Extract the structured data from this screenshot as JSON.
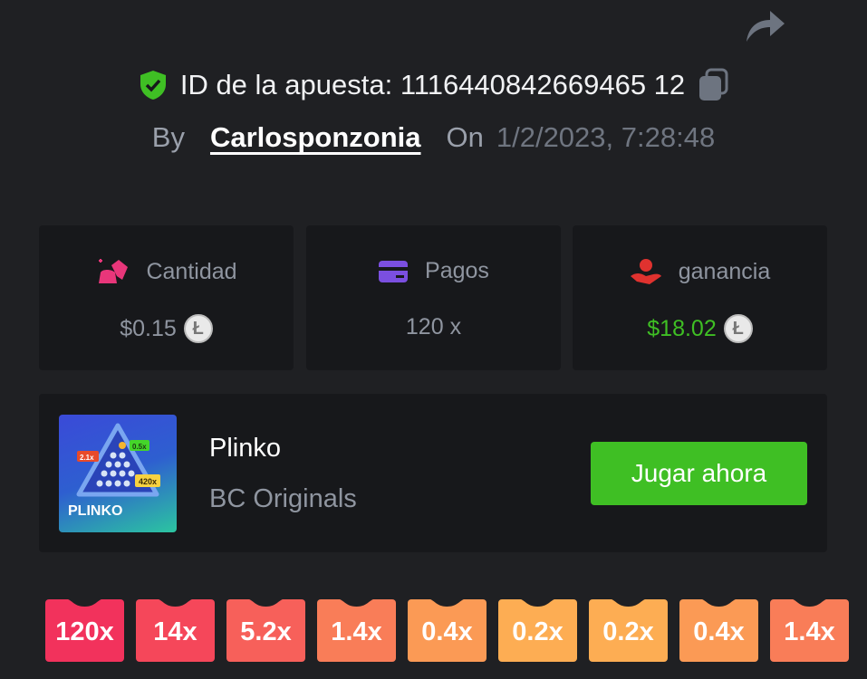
{
  "header": {
    "bet_id_label": "ID de la apuesta: 1116440842669465 12",
    "by_label": "By",
    "username": "Carlosponzonia",
    "on_label": "On",
    "datetime": "1/2/2023, 7:28:48",
    "icons": {
      "verified": "shield-check-icon",
      "copy": "copy-icon",
      "share": "share-icon"
    }
  },
  "stats": [
    {
      "label": "Cantidad",
      "value": "$0.15",
      "icon": "coins-icon",
      "icon_color": "#e8367a",
      "value_color": "#8f95a0",
      "coin": "Ł"
    },
    {
      "label": "Pagos",
      "value": "120 x",
      "icon": "card-icon",
      "icon_color": "#7b4fe0",
      "value_color": "#8f95a0"
    },
    {
      "label": "ganancia",
      "value": "$18.02",
      "icon": "hand-money-icon",
      "icon_color": "#e0322f",
      "value_color": "#3fbf24",
      "coin": "Ł"
    }
  ],
  "game": {
    "name": "Plinko",
    "provider": "BC Originals",
    "thumb_text": "PLINKO",
    "thumb_badges": [
      "2.1x",
      "0.5x",
      "420x"
    ],
    "play_label": "Jugar ahora",
    "accent": "#3fbf24"
  },
  "multipliers": [
    {
      "label": "120x",
      "color": "#f2325c"
    },
    {
      "label": "14x",
      "color": "#f5475a"
    },
    {
      "label": "5.2x",
      "color": "#f7605a"
    },
    {
      "label": "1.4x",
      "color": "#f97d58"
    },
    {
      "label": "0.4x",
      "color": "#fb9a55"
    },
    {
      "label": "0.2x",
      "color": "#fdad53"
    },
    {
      "label": "0.2x",
      "color": "#fdad53"
    },
    {
      "label": "0.4x",
      "color": "#fb9a55"
    },
    {
      "label": "1.4x",
      "color": "#f97d58"
    }
  ]
}
